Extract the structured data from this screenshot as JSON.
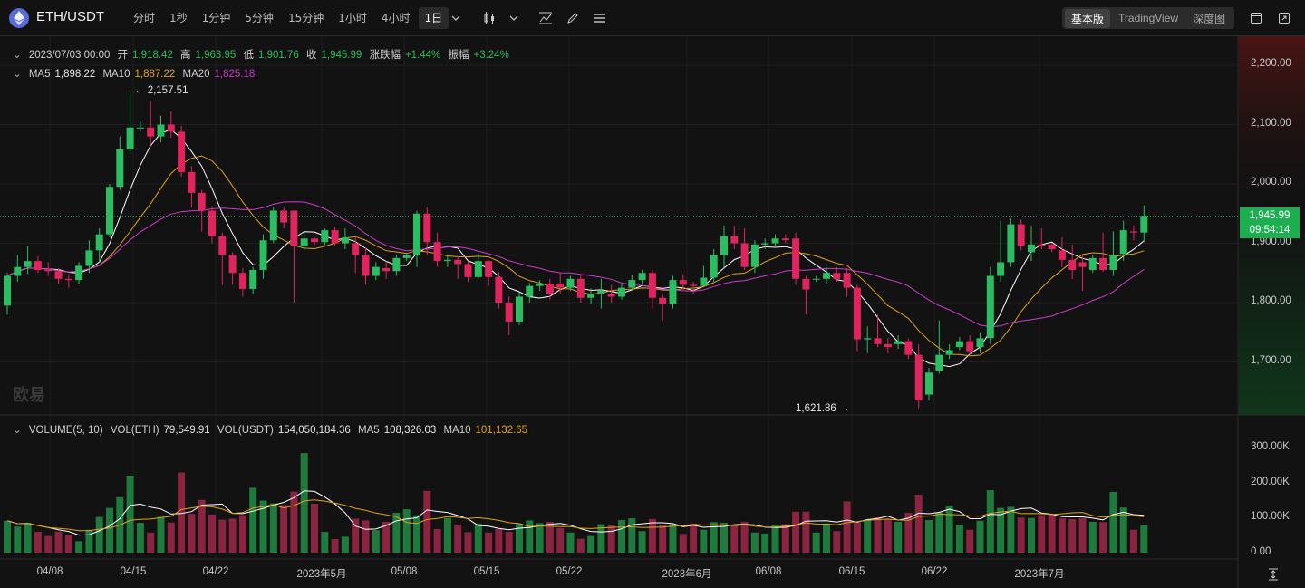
{
  "toolbar": {
    "pair": "ETH/USDT",
    "intervals": [
      "分时",
      "1秒",
      "1分钟",
      "5分钟",
      "15分钟",
      "1小时",
      "4小时",
      "1日"
    ],
    "active_interval": "1日",
    "views": [
      "基本版",
      "TradingView",
      "深度图"
    ],
    "active_view": "基本版"
  },
  "ohlc": {
    "date": "2023/07/03 00:00",
    "open_label": "开",
    "open": "1,918.42",
    "high_label": "高",
    "high": "1,963.95",
    "low_label": "低",
    "low": "1,901.76",
    "close_label": "收",
    "close": "1,945.99",
    "change_label": "涨跌幅",
    "change": "+1.44%",
    "amp_label": "振幅",
    "amp": "+3.24%"
  },
  "ma": {
    "ma5_label": "MA5",
    "ma5": "1,898.22",
    "ma10_label": "MA10",
    "ma10": "1,887.22",
    "ma20_label": "MA20",
    "ma20": "1,825.18"
  },
  "volume": {
    "title": "VOLUME(5, 10)",
    "vol_eth_label": "VOL(ETH)",
    "vol_eth": "79,549.91",
    "vol_usdt_label": "VOL(USDT)",
    "vol_usdt": "154,050,184.36",
    "ma5_label": "MA5",
    "ma5": "108,326.03",
    "ma10_label": "MA10",
    "ma10": "101,132.65"
  },
  "annotations": {
    "high": "← 2,157.51",
    "low": "1,621.86 →"
  },
  "price_tag": {
    "price": "1,945.99",
    "countdown": "09:54:14"
  },
  "watermark": "欧易",
  "price_axis": [
    "2,200.00",
    "2,100.00",
    "2,000.00",
    "1,900.00",
    "1,800.00",
    "1,700.00"
  ],
  "volume_axis": [
    "300.00K",
    "200.00K",
    "100.00K",
    "0.00"
  ],
  "x_axis": [
    "04/08",
    "04/15",
    "04/22",
    "2023年5月",
    "05/08",
    "05/15",
    "05/22",
    "2023年6月",
    "06/08",
    "06/15",
    "06/22",
    "2023年7月"
  ],
  "colors": {
    "up": "#2cbc62",
    "down": "#e0245e",
    "ma5": "#ffffff",
    "ma10": "#e0a21c",
    "ma20": "#cc3acc"
  },
  "chart_data": {
    "type": "candlestick",
    "price_range": [
      1600,
      2230
    ],
    "volume_range": [
      0,
      350000
    ],
    "candles": [
      [
        1795,
        1845,
        1780,
        1850,
        92000
      ],
      [
        1845,
        1860,
        1835,
        1880,
        75000
      ],
      [
        1860,
        1870,
        1848,
        1895,
        86000
      ],
      [
        1870,
        1855,
        1850,
        1878,
        60000
      ],
      [
        1855,
        1853,
        1845,
        1868,
        48000
      ],
      [
        1853,
        1840,
        1832,
        1858,
        61000
      ],
      [
        1840,
        1838,
        1825,
        1848,
        51000
      ],
      [
        1838,
        1862,
        1832,
        1868,
        33000
      ],
      [
        1862,
        1888,
        1850,
        1905,
        66000
      ],
      [
        1888,
        1915,
        1870,
        1925,
        103000
      ],
      [
        1915,
        1995,
        1910,
        2000,
        129000
      ],
      [
        1995,
        2058,
        1990,
        2080,
        160000
      ],
      [
        2058,
        2095,
        2050,
        2158,
        222000
      ],
      [
        2095,
        2095,
        2088,
        2105,
        86000
      ],
      [
        2095,
        2080,
        2065,
        2140,
        58000
      ],
      [
        2080,
        2100,
        2070,
        2115,
        103000
      ],
      [
        2100,
        2088,
        2078,
        2122,
        87000
      ],
      [
        2088,
        2020,
        2012,
        2098,
        231000
      ],
      [
        2020,
        1985,
        1960,
        2030,
        112000
      ],
      [
        1985,
        1955,
        1920,
        1990,
        152000
      ],
      [
        1955,
        1912,
        1900,
        1963,
        110000
      ],
      [
        1912,
        1880,
        1830,
        1918,
        95000
      ],
      [
        1880,
        1850,
        1830,
        1885,
        98000
      ],
      [
        1850,
        1823,
        1810,
        1858,
        108000
      ],
      [
        1823,
        1855,
        1815,
        1860,
        187000
      ],
      [
        1855,
        1905,
        1840,
        1915,
        150000
      ],
      [
        1905,
        1955,
        1900,
        1960,
        142000
      ],
      [
        1955,
        1935,
        1925,
        1960,
        137000
      ],
      [
        1955,
        1895,
        1800,
        1955,
        176000
      ],
      [
        1895,
        1908,
        1888,
        1920,
        287000
      ],
      [
        1908,
        1902,
        1895,
        1910,
        141000
      ],
      [
        1902,
        1922,
        1895,
        1925,
        60000
      ],
      [
        1922,
        1900,
        1895,
        1928,
        39000
      ],
      [
        1900,
        1910,
        1890,
        1925,
        46000
      ],
      [
        1900,
        1880,
        1850,
        1910,
        98000
      ],
      [
        1880,
        1845,
        1830,
        1892,
        93000
      ],
      [
        1845,
        1860,
        1838,
        1868,
        65000
      ],
      [
        1858,
        1853,
        1840,
        1870,
        89000
      ],
      [
        1853,
        1875,
        1845,
        1880,
        115000
      ],
      [
        1875,
        1880,
        1870,
        1882,
        125000
      ],
      [
        1880,
        1950,
        1860,
        1955,
        108000
      ],
      [
        1950,
        1902,
        1880,
        1960,
        178000
      ],
      [
        1902,
        1870,
        1860,
        1918,
        68000
      ],
      [
        1870,
        1872,
        1860,
        1878,
        100000
      ],
      [
        1872,
        1865,
        1840,
        1878,
        81000
      ],
      [
        1865,
        1843,
        1835,
        1870,
        59000
      ],
      [
        1843,
        1870,
        1840,
        1882,
        84000
      ],
      [
        1870,
        1843,
        1828,
        1872,
        58000
      ],
      [
        1843,
        1800,
        1790,
        1852,
        68000
      ],
      [
        1800,
        1768,
        1745,
        1810,
        60000
      ],
      [
        1768,
        1810,
        1762,
        1818,
        83000
      ],
      [
        1810,
        1828,
        1800,
        1833,
        93000
      ],
      [
        1828,
        1832,
        1820,
        1838,
        85000
      ],
      [
        1832,
        1815,
        1805,
        1840,
        89000
      ],
      [
        1832,
        1825,
        1815,
        1850,
        71000
      ],
      [
        1825,
        1840,
        1820,
        1845,
        58000
      ],
      [
        1840,
        1808,
        1800,
        1848,
        40000
      ],
      [
        1808,
        1815,
        1798,
        1824,
        48000
      ],
      [
        1815,
        1820,
        1790,
        1840,
        82000
      ],
      [
        1815,
        1810,
        1800,
        1830,
        79000
      ],
      [
        1810,
        1825,
        1805,
        1832,
        94000
      ],
      [
        1825,
        1838,
        1820,
        1846,
        99000
      ],
      [
        1838,
        1850,
        1832,
        1855,
        62000
      ],
      [
        1850,
        1808,
        1790,
        1855,
        97000
      ],
      [
        1808,
        1798,
        1770,
        1815,
        79000
      ],
      [
        1798,
        1838,
        1790,
        1845,
        82000
      ],
      [
        1838,
        1830,
        1823,
        1848,
        54000
      ],
      [
        1830,
        1828,
        1815,
        1835,
        84000
      ],
      [
        1828,
        1842,
        1828,
        1862,
        66000
      ],
      [
        1842,
        1880,
        1835,
        1890,
        88000
      ],
      [
        1880,
        1912,
        1860,
        1930,
        86000
      ],
      [
        1912,
        1900,
        1890,
        1930,
        79000
      ],
      [
        1900,
        1860,
        1855,
        1925,
        89000
      ],
      [
        1860,
        1898,
        1850,
        1905,
        58000
      ],
      [
        1898,
        1900,
        1890,
        1908,
        55000
      ],
      [
        1900,
        1908,
        1895,
        1915,
        81000
      ],
      [
        1908,
        1905,
        1900,
        1915,
        82000
      ],
      [
        1908,
        1840,
        1830,
        1918,
        118000
      ],
      [
        1840,
        1822,
        1780,
        1845,
        118000
      ],
      [
        1840,
        1840,
        1835,
        1845,
        58000
      ],
      [
        1840,
        1850,
        1832,
        1860,
        84000
      ],
      [
        1850,
        1840,
        1835,
        1860,
        62000
      ],
      [
        1850,
        1825,
        1810,
        1858,
        148000
      ],
      [
        1825,
        1738,
        1718,
        1830,
        87000
      ],
      [
        1738,
        1740,
        1715,
        1760,
        95000
      ],
      [
        1740,
        1730,
        1725,
        1780,
        102000
      ],
      [
        1730,
        1725,
        1715,
        1740,
        96000
      ],
      [
        1730,
        1735,
        1722,
        1745,
        89000
      ],
      [
        1735,
        1712,
        1705,
        1740,
        115000
      ],
      [
        1712,
        1635,
        1622,
        1730,
        167000
      ],
      [
        1645,
        1682,
        1635,
        1690,
        94000
      ],
      [
        1685,
        1712,
        1680,
        1770,
        116000
      ],
      [
        1712,
        1720,
        1705,
        1730,
        135000
      ],
      [
        1725,
        1735,
        1720,
        1742,
        80000
      ],
      [
        1735,
        1718,
        1710,
        1745,
        66000
      ],
      [
        1725,
        1740,
        1715,
        1750,
        92000
      ],
      [
        1740,
        1845,
        1730,
        1860,
        180000
      ],
      [
        1845,
        1868,
        1835,
        1938,
        129000
      ],
      [
        1868,
        1932,
        1860,
        1942,
        132000
      ],
      [
        1932,
        1895,
        1888,
        1940,
        101000
      ],
      [
        1885,
        1898,
        1870,
        1930,
        100000
      ],
      [
        1898,
        1895,
        1890,
        1925,
        108000
      ],
      [
        1898,
        1890,
        1885,
        1900,
        112000
      ],
      [
        1888,
        1872,
        1860,
        1910,
        99000
      ],
      [
        1872,
        1855,
        1840,
        1898,
        97000
      ],
      [
        1868,
        1860,
        1820,
        1880,
        100000
      ],
      [
        1855,
        1875,
        1850,
        1880,
        89000
      ],
      [
        1875,
        1855,
        1852,
        1918,
        88000
      ],
      [
        1855,
        1880,
        1845,
        1920,
        175000
      ],
      [
        1882,
        1922,
        1870,
        1938,
        130000
      ],
      [
        1920,
        1918,
        1905,
        1930,
        66000
      ],
      [
        1918,
        1946,
        1902,
        1964,
        79550
      ]
    ]
  }
}
